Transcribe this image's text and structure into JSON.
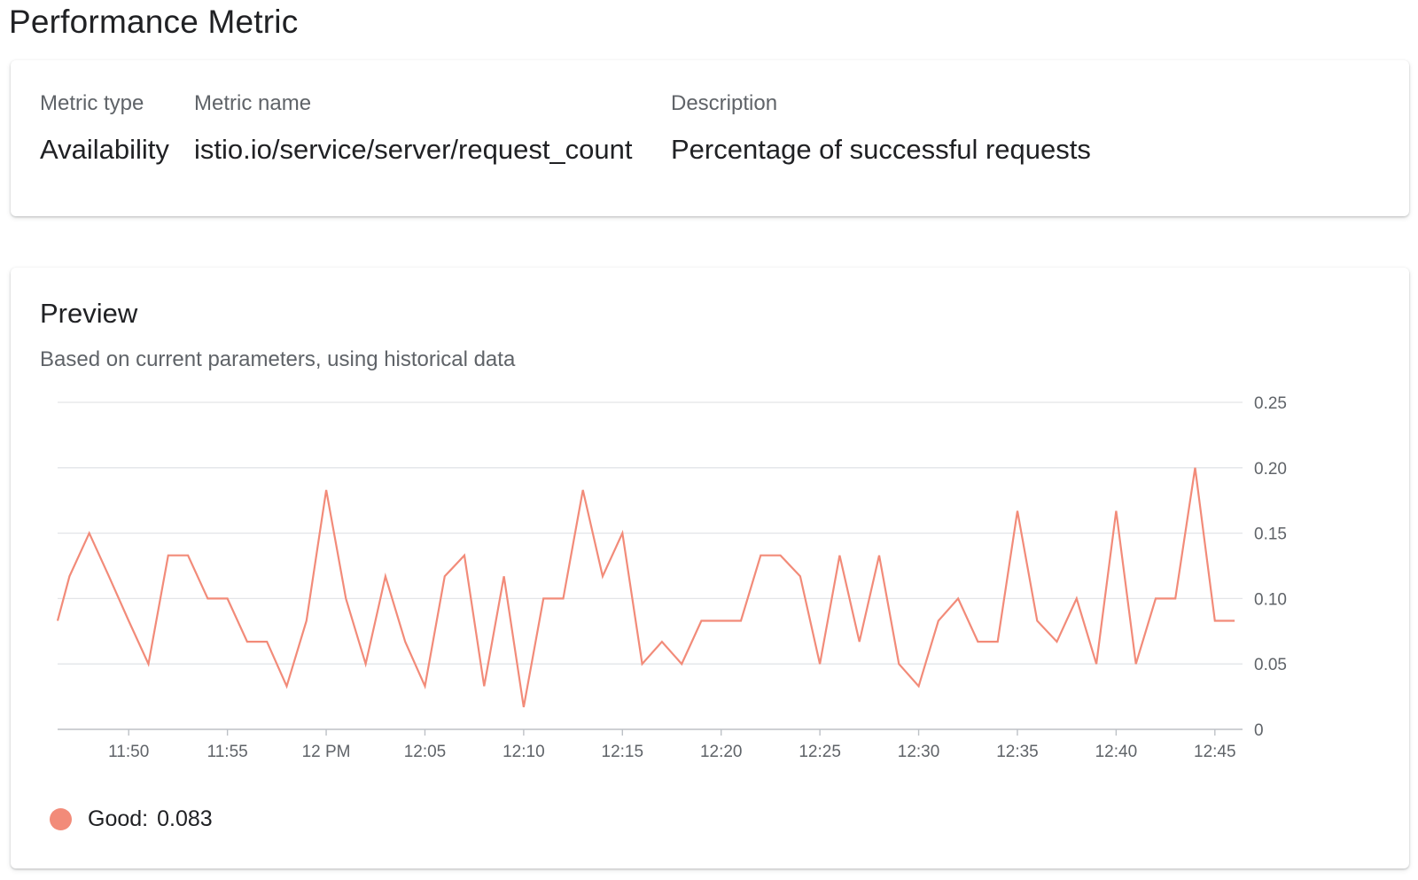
{
  "page": {
    "title": "Performance Metric"
  },
  "metric": {
    "type_label": "Metric type",
    "type_value": "Availability",
    "name_label": "Metric name",
    "name_value": "istio.io/service/server/request_count",
    "description_label": "Description",
    "description_value": "Percentage of successful requests"
  },
  "preview": {
    "title": "Preview",
    "subtitle": "Based on current parameters, using historical data",
    "legend": {
      "name": "Good:",
      "value": "0.083",
      "color": "#f28b79"
    }
  },
  "chart_data": {
    "type": "line",
    "title": "",
    "xlabel": "",
    "ylabel": "",
    "x_unit": "minutes",
    "x_range": [
      -3.6,
      56.4
    ],
    "x_start_label": "11:47",
    "ylim": [
      0,
      0.25
    ],
    "y_axis_position": "right",
    "grid": true,
    "legend_position": "bottom-left",
    "x_ticks": [
      {
        "label": "11:50",
        "value": 0
      },
      {
        "label": "11:55",
        "value": 5
      },
      {
        "label": "12 PM",
        "value": 10
      },
      {
        "label": "12:05",
        "value": 15
      },
      {
        "label": "12:10",
        "value": 20
      },
      {
        "label": "12:15",
        "value": 25
      },
      {
        "label": "12:20",
        "value": 30
      },
      {
        "label": "12:25",
        "value": 35
      },
      {
        "label": "12:30",
        "value": 40
      },
      {
        "label": "12:35",
        "value": 45
      },
      {
        "label": "12:40",
        "value": 50
      },
      {
        "label": "12:45",
        "value": 55
      }
    ],
    "y_ticks": [
      {
        "label": "0",
        "value": 0
      },
      {
        "label": "0.05",
        "value": 0.05
      },
      {
        "label": "0.10",
        "value": 0.1
      },
      {
        "label": "0.15",
        "value": 0.15
      },
      {
        "label": "0.20",
        "value": 0.2
      },
      {
        "label": "0.25",
        "value": 0.25
      }
    ],
    "series": [
      {
        "name": "Good",
        "color": "#f28b79",
        "x": [
          -3.6,
          -3,
          -2,
          -1,
          0,
          1,
          2,
          3,
          4,
          5,
          6,
          7,
          8,
          9,
          10,
          11,
          12,
          13,
          14,
          15,
          16,
          17,
          18,
          19,
          20,
          21,
          22,
          23,
          24,
          25,
          26,
          27,
          28,
          29,
          30,
          31,
          32,
          33,
          34,
          35,
          36,
          37,
          38,
          39,
          40,
          41,
          42,
          43,
          44,
          45,
          46,
          47,
          48,
          49,
          50,
          51,
          52,
          53,
          54,
          55,
          56
        ],
        "values": [
          0.083,
          0.117,
          0.15,
          0.117,
          0.083,
          0.05,
          0.133,
          0.133,
          0.1,
          0.1,
          0.067,
          0.067,
          0.033,
          0.083,
          0.183,
          0.1,
          0.05,
          0.117,
          0.067,
          0.033,
          0.117,
          0.133,
          0.033,
          0.117,
          0.017,
          0.1,
          0.1,
          0.183,
          0.117,
          0.15,
          0.05,
          0.067,
          0.05,
          0.083,
          0.083,
          0.083,
          0.133,
          0.133,
          0.117,
          0.05,
          0.133,
          0.067,
          0.133,
          0.05,
          0.033,
          0.083,
          0.1,
          0.067,
          0.067,
          0.167,
          0.083,
          0.067,
          0.1,
          0.05,
          0.167,
          0.05,
          0.1,
          0.1,
          0.2,
          0.083,
          0.083
        ]
      }
    ]
  }
}
